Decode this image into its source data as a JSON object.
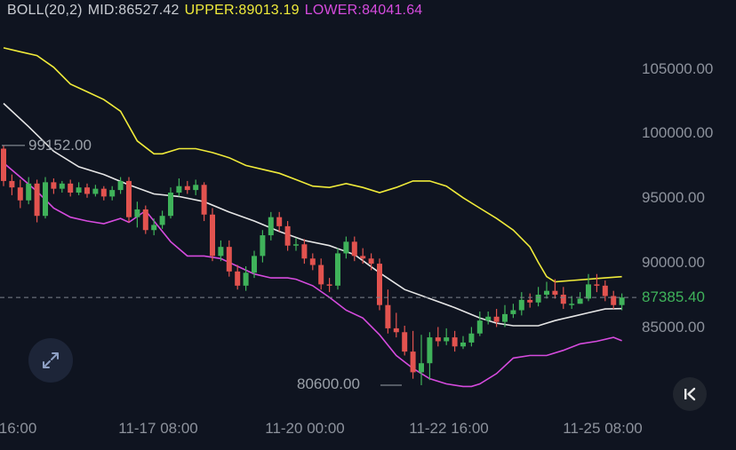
{
  "legend": {
    "label": "BOLL(20,2)",
    "mid": "MID:86527.42",
    "upper": "UPPER:89013.19",
    "lower": "LOWER:84041.64"
  },
  "current_price": "87385.40",
  "annotations": {
    "high": "99152.00",
    "low": "80600.00"
  },
  "icons": {
    "expand": "expand-arrows-icon",
    "back": "chevron-left-bar-icon"
  },
  "colors": {
    "background": "#0f1420",
    "up": "#3fb25a",
    "down": "#e2534f",
    "upper_band": "#f0eb3a",
    "mid_band": "#e6e6e6",
    "lower_band": "#d64bde"
  },
  "chart_data": {
    "type": "candlestick",
    "indicator": "BOLL(20,2)",
    "y_axis": {
      "ticks": [
        85000,
        90000,
        95000,
        100000,
        105000
      ],
      "ylim": [
        79500,
        106900
      ]
    },
    "x_axis": {
      "ticks": [
        "16:00",
        "11-17 08:00",
        "11-20 00:00",
        "11-22 16:00",
        "11-25 08:00"
      ]
    },
    "highest": 99152.0,
    "lowest": 80600.0,
    "current": 87385.4,
    "candles": [
      [
        98900,
        96400,
        99152,
        96000
      ],
      [
        96400,
        95900,
        96900,
        95300
      ],
      [
        95900,
        94900,
        96500,
        94300
      ],
      [
        94900,
        96200,
        96700,
        94600
      ],
      [
        96200,
        93700,
        96500,
        93200
      ],
      [
        93700,
        96300,
        96700,
        93500
      ],
      [
        96300,
        95800,
        96600,
        95400
      ],
      [
        95800,
        96200,
        96400,
        95500
      ],
      [
        96200,
        95500,
        96500,
        95200
      ],
      [
        95500,
        95900,
        96300,
        95300
      ],
      [
        95900,
        95400,
        96200,
        95100
      ],
      [
        95400,
        95800,
        96100,
        95200
      ],
      [
        95800,
        95200,
        96000,
        94900
      ],
      [
        95200,
        95700,
        96000,
        94900
      ],
      [
        95700,
        96400,
        96700,
        95400
      ],
      [
        96400,
        93600,
        96700,
        93200
      ],
      [
        93600,
        94200,
        94800,
        92800
      ],
      [
        94200,
        92600,
        94500,
        92300
      ],
      [
        92600,
        93000,
        93500,
        92200
      ],
      [
        93000,
        93700,
        94100,
        92700
      ],
      [
        93700,
        95500,
        95900,
        93500
      ],
      [
        95500,
        96000,
        96600,
        95200
      ],
      [
        96000,
        95700,
        96400,
        95400
      ],
      [
        95700,
        96100,
        96500,
        95300
      ],
      [
        96100,
        93800,
        96300,
        93300
      ],
      [
        93800,
        90600,
        94300,
        90200
      ],
      [
        90600,
        91300,
        91800,
        90200
      ],
      [
        91300,
        89400,
        91800,
        89000
      ],
      [
        89400,
        88300,
        89900,
        88000
      ],
      [
        88300,
        89300,
        89800,
        87900
      ],
      [
        89300,
        90600,
        91000,
        88900
      ],
      [
        90600,
        92200,
        92600,
        90100
      ],
      [
        92200,
        93600,
        94000,
        91800
      ],
      [
        93600,
        92900,
        94000,
        92500
      ],
      [
        92900,
        91400,
        93300,
        91000
      ],
      [
        91400,
        91500,
        92000,
        91000
      ],
      [
        91500,
        90400,
        91900,
        90000
      ],
      [
        90400,
        89900,
        90800,
        89500
      ],
      [
        89900,
        88400,
        90400,
        88000
      ],
      [
        88400,
        88300,
        88900,
        87800
      ],
      [
        88300,
        90800,
        91200,
        88000
      ],
      [
        90800,
        91700,
        92100,
        90400
      ],
      [
        91700,
        90600,
        92100,
        90200
      ],
      [
        90600,
        90400,
        91200,
        90000
      ],
      [
        90400,
        90000,
        90800,
        89500
      ],
      [
        90000,
        86800,
        90400,
        86400
      ],
      [
        86800,
        85000,
        88000,
        84600
      ],
      [
        85000,
        84700,
        86200,
        84300
      ],
      [
        84700,
        83200,
        85200,
        82900
      ],
      [
        83200,
        81600,
        84800,
        81100
      ],
      [
        81600,
        82300,
        84500,
        80600
      ],
      [
        82300,
        84300,
        84700,
        81000
      ],
      [
        84300,
        84000,
        85100,
        83600
      ],
      [
        84000,
        84300,
        85000,
        83700
      ],
      [
        84300,
        83600,
        84800,
        83200
      ],
      [
        83600,
        83900,
        84400,
        83400
      ],
      [
        83900,
        84600,
        85100,
        83600
      ],
      [
        84600,
        85600,
        86300,
        84400
      ],
      [
        85600,
        85900,
        86300,
        85300
      ],
      [
        85900,
        85500,
        86500,
        85100
      ],
      [
        85500,
        86100,
        86800,
        85100
      ],
      [
        86100,
        86400,
        86900,
        85800
      ],
      [
        86400,
        87200,
        87800,
        86000
      ],
      [
        87200,
        87000,
        87700,
        86600
      ],
      [
        87000,
        87600,
        88200,
        86700
      ],
      [
        87600,
        87900,
        88600,
        87300
      ],
      [
        87900,
        87600,
        88800,
        87300
      ],
      [
        87600,
        86900,
        88200,
        86500
      ],
      [
        86900,
        86900,
        87500,
        86500
      ],
      [
        86900,
        87300,
        87800,
        86900
      ],
      [
        87300,
        88400,
        89200,
        87100
      ],
      [
        88400,
        88300,
        89200,
        87800
      ],
      [
        88300,
        87500,
        88700,
        87100
      ],
      [
        87500,
        86800,
        87900,
        86500
      ],
      [
        86800,
        87385.4,
        87700,
        86400
      ]
    ],
    "upper_band": [
      [
        0,
        106700
      ],
      [
        2,
        106400
      ],
      [
        4,
        106100
      ],
      [
        6,
        105200
      ],
      [
        8,
        103900
      ],
      [
        10,
        103300
      ],
      [
        12,
        102700
      ],
      [
        14,
        101800
      ],
      [
        16,
        99500
      ],
      [
        18,
        98500
      ],
      [
        19,
        98500
      ],
      [
        21,
        98900
      ],
      [
        23,
        98900
      ],
      [
        25,
        98600
      ],
      [
        27,
        98200
      ],
      [
        29,
        97600
      ],
      [
        31,
        97300
      ],
      [
        33,
        97000
      ],
      [
        35,
        96500
      ],
      [
        37,
        96000
      ],
      [
        39,
        95900
      ],
      [
        41,
        96200
      ],
      [
        43,
        95900
      ],
      [
        45,
        95500
      ],
      [
        47,
        95900
      ],
      [
        49,
        96400
      ],
      [
        51,
        96400
      ],
      [
        53,
        96000
      ],
      [
        55,
        95100
      ],
      [
        57,
        94300
      ],
      [
        59,
        93500
      ],
      [
        61,
        92600
      ],
      [
        63,
        91300
      ],
      [
        64,
        90100
      ],
      [
        65,
        89000
      ],
      [
        66,
        88600
      ],
      [
        68,
        88700
      ],
      [
        70,
        88800
      ],
      [
        72,
        88900
      ],
      [
        74,
        89000
      ]
    ],
    "mid_band": [
      [
        0,
        102400
      ],
      [
        3,
        100600
      ],
      [
        6,
        98700
      ],
      [
        9,
        97500
      ],
      [
        12,
        96900
      ],
      [
        15,
        96100
      ],
      [
        18,
        95400
      ],
      [
        21,
        95200
      ],
      [
        24,
        94800
      ],
      [
        27,
        94000
      ],
      [
        30,
        93300
      ],
      [
        33,
        92500
      ],
      [
        36,
        91800
      ],
      [
        39,
        91400
      ],
      [
        42,
        90700
      ],
      [
        45,
        89300
      ],
      [
        48,
        88000
      ],
      [
        51,
        87300
      ],
      [
        54,
        86600
      ],
      [
        57,
        85800
      ],
      [
        59,
        85400
      ],
      [
        61,
        85200
      ],
      [
        62,
        85200
      ],
      [
        64,
        85200
      ],
      [
        66,
        85600
      ],
      [
        68,
        85900
      ],
      [
        70,
        86200
      ],
      [
        72,
        86500
      ],
      [
        74,
        86527.42
      ]
    ],
    "lower_band": [
      [
        0,
        97800
      ],
      [
        2,
        96700
      ],
      [
        4,
        95600
      ],
      [
        6,
        94300
      ],
      [
        8,
        93600
      ],
      [
        10,
        93300
      ],
      [
        12,
        93100
      ],
      [
        14,
        93500
      ],
      [
        15,
        93200
      ],
      [
        17,
        94100
      ],
      [
        18,
        93300
      ],
      [
        20,
        91700
      ],
      [
        22,
        90600
      ],
      [
        24,
        90600
      ],
      [
        26,
        90400
      ],
      [
        28,
        89800
      ],
      [
        30,
        89200
      ],
      [
        32,
        88900
      ],
      [
        34,
        88900
      ],
      [
        35,
        88800
      ],
      [
        37,
        88300
      ],
      [
        39,
        87400
      ],
      [
        41,
        86400
      ],
      [
        43,
        85800
      ],
      [
        45,
        84500
      ],
      [
        47,
        82900
      ],
      [
        49,
        81900
      ],
      [
        51,
        81100
      ],
      [
        53,
        80700
      ],
      [
        55,
        80500
      ],
      [
        56,
        80500
      ],
      [
        57,
        80700
      ],
      [
        59,
        81500
      ],
      [
        61,
        82700
      ],
      [
        63,
        82900
      ],
      [
        65,
        82900
      ],
      [
        67,
        83300
      ],
      [
        69,
        83800
      ],
      [
        71,
        84000
      ],
      [
        73,
        84300
      ],
      [
        74,
        84041.64
      ]
    ]
  }
}
